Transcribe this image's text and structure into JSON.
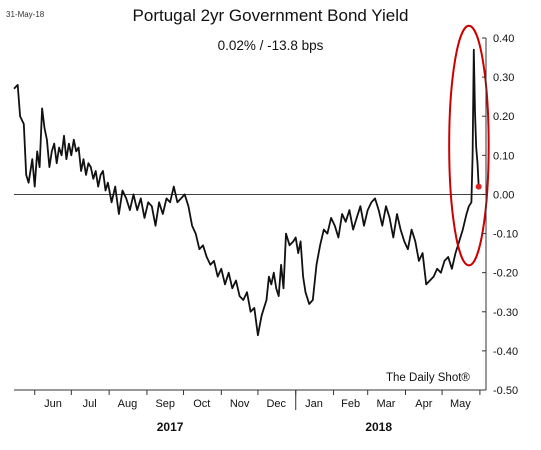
{
  "date_stamp": "31-May-18",
  "credit": "The Daily Shot®",
  "chart_data": {
    "type": "line",
    "title": "Portugal 2yr Government Bond Yield",
    "subtitle": "0.02%  /  -13.8 bps",
    "xlabel": "",
    "ylabel": "",
    "ylim": [
      -0.5,
      0.4
    ],
    "yticks": [
      0.4,
      0.3,
      0.2,
      0.1,
      0.0,
      -0.1,
      -0.2,
      -0.3,
      -0.4,
      -0.5
    ],
    "ytick_labels": [
      "0.40",
      "0.30",
      "0.20",
      "0.10",
      "0.00",
      "-0.10",
      "-0.20",
      "-0.30",
      "-0.40",
      "-0.50"
    ],
    "xlim": [
      "2017-05-15",
      "2018-06-06"
    ],
    "month_ticks": [
      "2017-06-01",
      "2017-07-01",
      "2017-08-01",
      "2017-09-01",
      "2017-10-01",
      "2017-11-01",
      "2017-12-01",
      "2018-01-01",
      "2018-02-01",
      "2018-03-01",
      "2018-04-01",
      "2018-05-01",
      "2018-06-01"
    ],
    "month_labels": [
      {
        "label": "Jun",
        "date": "2017-06-16"
      },
      {
        "label": "Jul",
        "date": "2017-07-16"
      },
      {
        "label": "Aug",
        "date": "2017-08-16"
      },
      {
        "label": "Sep",
        "date": "2017-09-16"
      },
      {
        "label": "Oct",
        "date": "2017-10-16"
      },
      {
        "label": "Nov",
        "date": "2017-11-16"
      },
      {
        "label": "Dec",
        "date": "2017-12-16"
      },
      {
        "label": "Jan",
        "date": "2018-01-16"
      },
      {
        "label": "Feb",
        "date": "2018-02-15"
      },
      {
        "label": "Mar",
        "date": "2018-03-16"
      },
      {
        "label": "Apr",
        "date": "2018-04-16"
      },
      {
        "label": "May",
        "date": "2018-05-16"
      }
    ],
    "year_divider": "2018-01-01",
    "year_labels": [
      {
        "label": "2017",
        "date": "2017-09-20"
      },
      {
        "label": "2018",
        "date": "2018-03-10"
      }
    ],
    "reference_line": 0.0,
    "grid": false,
    "series": [
      {
        "color": "#111111",
        "x": [
          "2017-05-15",
          "2017-05-18",
          "2017-05-20",
          "2017-05-23",
          "2017-05-25",
          "2017-05-27",
          "2017-05-30",
          "2017-06-01",
          "2017-06-03",
          "2017-06-05",
          "2017-06-07",
          "2017-06-09",
          "2017-06-11",
          "2017-06-13",
          "2017-06-15",
          "2017-06-17",
          "2017-06-19",
          "2017-06-21",
          "2017-06-23",
          "2017-06-25",
          "2017-06-27",
          "2017-06-29",
          "2017-07-01",
          "2017-07-03",
          "2017-07-05",
          "2017-07-07",
          "2017-07-09",
          "2017-07-11",
          "2017-07-13",
          "2017-07-15",
          "2017-07-17",
          "2017-07-19",
          "2017-07-21",
          "2017-07-23",
          "2017-07-25",
          "2017-07-27",
          "2017-07-29",
          "2017-07-31",
          "2017-08-03",
          "2017-08-06",
          "2017-08-09",
          "2017-08-12",
          "2017-08-15",
          "2017-08-18",
          "2017-08-21",
          "2017-08-24",
          "2017-08-27",
          "2017-08-30",
          "2017-09-02",
          "2017-09-05",
          "2017-09-08",
          "2017-09-11",
          "2017-09-14",
          "2017-09-17",
          "2017-09-20",
          "2017-09-23",
          "2017-09-26",
          "2017-09-29",
          "2017-10-02",
          "2017-10-05",
          "2017-10-08",
          "2017-10-11",
          "2017-10-14",
          "2017-10-17",
          "2017-10-20",
          "2017-10-23",
          "2017-10-26",
          "2017-10-29",
          "2017-11-01",
          "2017-11-04",
          "2017-11-07",
          "2017-11-10",
          "2017-11-13",
          "2017-11-16",
          "2017-11-19",
          "2017-11-22",
          "2017-11-25",
          "2017-11-28",
          "2017-12-01",
          "2017-12-04",
          "2017-12-06",
          "2017-12-08",
          "2017-12-10",
          "2017-12-12",
          "2017-12-14",
          "2017-12-16",
          "2017-12-18",
          "2017-12-20",
          "2017-12-22",
          "2017-12-24",
          "2017-12-27",
          "2017-12-30",
          "2018-01-01",
          "2018-01-03",
          "2018-01-05",
          "2018-01-07",
          "2018-01-09",
          "2018-01-12",
          "2018-01-15",
          "2018-01-18",
          "2018-01-21",
          "2018-01-24",
          "2018-01-27",
          "2018-01-30",
          "2018-02-02",
          "2018-02-05",
          "2018-02-08",
          "2018-02-11",
          "2018-02-14",
          "2018-02-17",
          "2018-02-20",
          "2018-02-23",
          "2018-02-26",
          "2018-03-01",
          "2018-03-04",
          "2018-03-07",
          "2018-03-10",
          "2018-03-13",
          "2018-03-16",
          "2018-03-19",
          "2018-03-22",
          "2018-03-25",
          "2018-03-28",
          "2018-03-31",
          "2018-04-03",
          "2018-04-06",
          "2018-04-09",
          "2018-04-12",
          "2018-04-15",
          "2018-04-18",
          "2018-04-21",
          "2018-04-24",
          "2018-04-27",
          "2018-04-30",
          "2018-05-03",
          "2018-05-06",
          "2018-05-09",
          "2018-05-12",
          "2018-05-15",
          "2018-05-18",
          "2018-05-21",
          "2018-05-23",
          "2018-05-25",
          "2018-05-26",
          "2018-05-27",
          "2018-05-28",
          "2018-05-29",
          "2018-05-30",
          "2018-05-31"
        ],
        "values": [
          0.27,
          0.28,
          0.2,
          0.18,
          0.05,
          0.03,
          0.09,
          0.02,
          0.11,
          0.07,
          0.22,
          0.17,
          0.14,
          0.07,
          0.11,
          0.13,
          0.08,
          0.12,
          0.1,
          0.15,
          0.09,
          0.13,
          0.1,
          0.14,
          0.11,
          0.12,
          0.06,
          0.09,
          0.05,
          0.08,
          0.07,
          0.04,
          0.06,
          0.02,
          0.05,
          0.06,
          0.01,
          0.03,
          -0.02,
          0.02,
          -0.05,
          0.01,
          -0.01,
          -0.04,
          0.0,
          -0.04,
          -0.01,
          -0.06,
          -0.02,
          -0.03,
          -0.08,
          -0.02,
          -0.05,
          -0.01,
          -0.02,
          0.02,
          -0.02,
          -0.01,
          0.0,
          -0.03,
          -0.08,
          -0.1,
          -0.14,
          -0.13,
          -0.16,
          -0.18,
          -0.17,
          -0.21,
          -0.19,
          -0.23,
          -0.2,
          -0.24,
          -0.22,
          -0.26,
          -0.27,
          -0.25,
          -0.3,
          -0.29,
          -0.36,
          -0.31,
          -0.29,
          -0.27,
          -0.21,
          -0.23,
          -0.2,
          -0.24,
          -0.26,
          -0.18,
          -0.24,
          -0.1,
          -0.13,
          -0.12,
          -0.11,
          -0.15,
          -0.12,
          -0.21,
          -0.25,
          -0.28,
          -0.27,
          -0.18,
          -0.13,
          -0.09,
          -0.1,
          -0.06,
          -0.08,
          -0.11,
          -0.05,
          -0.07,
          -0.04,
          -0.09,
          -0.06,
          -0.03,
          -0.08,
          -0.04,
          -0.02,
          -0.01,
          -0.04,
          -0.08,
          -0.03,
          -0.06,
          -0.11,
          -0.05,
          -0.09,
          -0.12,
          -0.14,
          -0.09,
          -0.12,
          -0.17,
          -0.15,
          -0.23,
          -0.22,
          -0.21,
          -0.19,
          -0.2,
          -0.17,
          -0.16,
          -0.19,
          -0.15,
          -0.12,
          -0.09,
          -0.05,
          -0.03,
          -0.02,
          0.1,
          0.37,
          0.21,
          0.12,
          0.08,
          0.02
        ]
      }
    ],
    "annotations": [
      {
        "type": "ellipse",
        "color": "#cc0000",
        "note": "highlight around recent spike"
      },
      {
        "type": "marker",
        "date": "2018-05-31",
        "value": 0.02,
        "color": "#dd2222"
      }
    ]
  }
}
